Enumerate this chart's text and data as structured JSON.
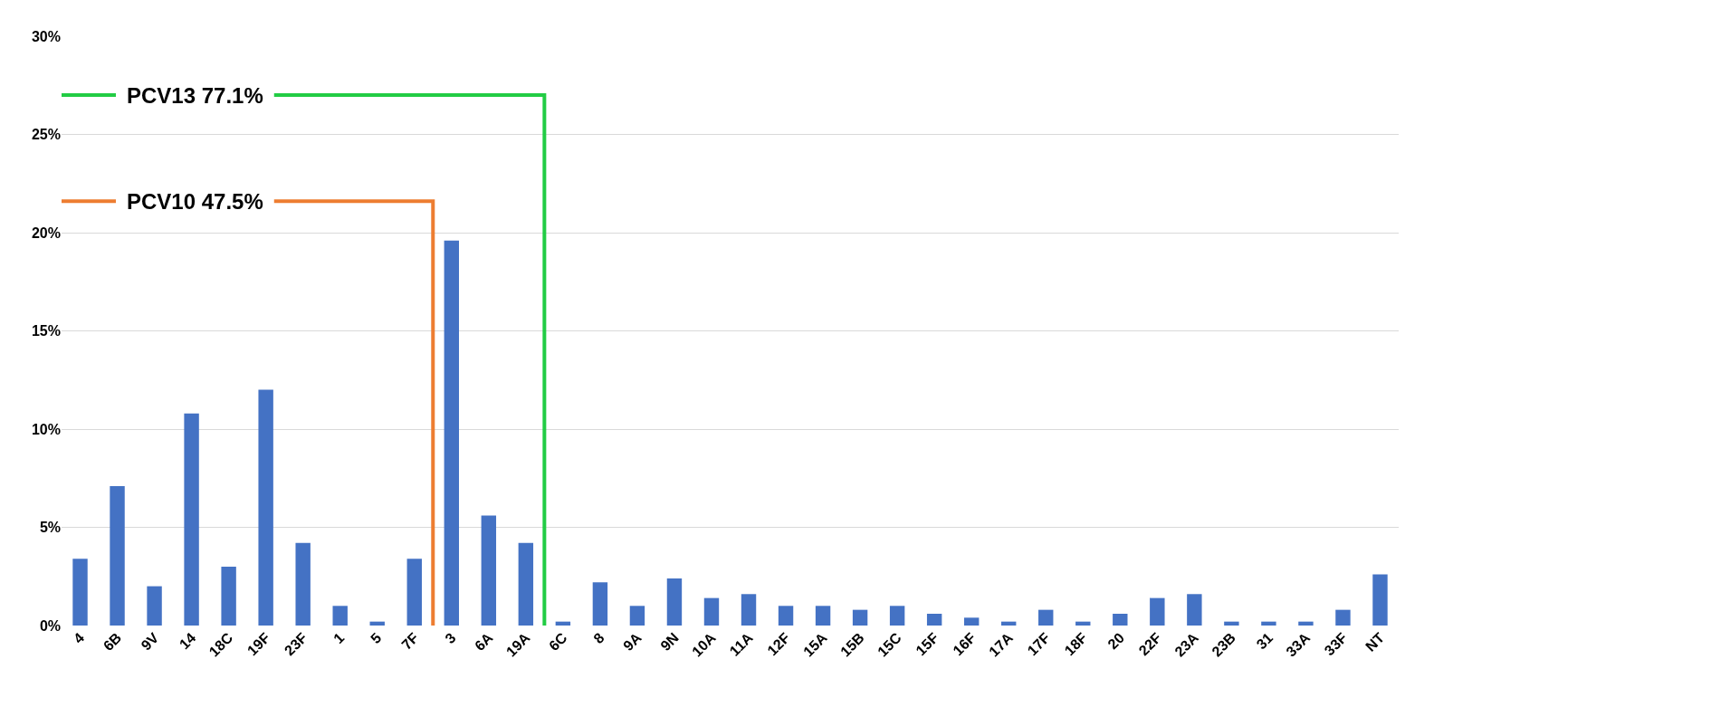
{
  "chart_data": {
    "type": "bar",
    "categories": [
      "4",
      "6B",
      "9V",
      "14",
      "18C",
      "19F",
      "23F",
      "1",
      "5",
      "7F",
      "3",
      "6A",
      "19A",
      "6C",
      "8",
      "9A",
      "9N",
      "10A",
      "11A",
      "12F",
      "15A",
      "15B",
      "15C",
      "15F",
      "16F",
      "17A",
      "17F",
      "18F",
      "20",
      "22F",
      "23A",
      "23B",
      "31",
      "33A",
      "33F",
      "NT"
    ],
    "values": [
      3.4,
      7.1,
      2.0,
      10.8,
      3.0,
      12.0,
      4.2,
      1.0,
      0.2,
      3.4,
      19.6,
      5.6,
      4.2,
      0.2,
      2.2,
      1.0,
      2.4,
      1.4,
      1.6,
      1.0,
      1.0,
      0.8,
      1.0,
      0.6,
      0.4,
      0.2,
      0.8,
      0.2,
      0.6,
      1.4,
      1.6,
      0.2,
      0.2,
      0.2,
      0.8,
      2.6
    ],
    "color": "#4472c4",
    "ylim": [
      0,
      30
    ],
    "yticks": [
      {
        "value": 0,
        "label": "0%"
      },
      {
        "value": 5,
        "label": "5%"
      },
      {
        "value": 10,
        "label": "10%"
      },
      {
        "value": 15,
        "label": "15%"
      },
      {
        "value": 20,
        "label": "20%"
      },
      {
        "value": 25,
        "label": "25%"
      },
      {
        "value": 30,
        "label": "30%"
      }
    ],
    "grid": "y",
    "annotations": [
      "PCV13 77.1%",
      "PCV10 47.5%"
    ]
  }
}
